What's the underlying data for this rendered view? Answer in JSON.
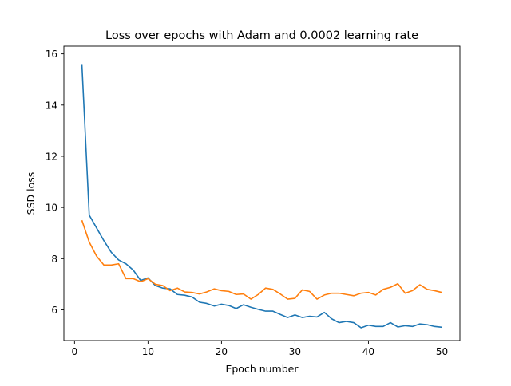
{
  "chart_data": {
    "type": "line",
    "title": "Loss over epochs with Adam and 0.0002 learning rate",
    "xlabel": "Epoch number",
    "ylabel": "SSD loss",
    "xlim": [
      -1.45,
      52.45
    ],
    "ylim": [
      4.8,
      16.3
    ],
    "xticks": [
      0,
      10,
      20,
      30,
      40,
      50
    ],
    "yticks": [
      6,
      8,
      10,
      12,
      14,
      16
    ],
    "grid": false,
    "legend": "none",
    "x": [
      1,
      2,
      3,
      4,
      5,
      6,
      7,
      8,
      9,
      10,
      11,
      12,
      13,
      14,
      15,
      16,
      17,
      18,
      19,
      20,
      21,
      22,
      23,
      24,
      25,
      26,
      27,
      28,
      29,
      30,
      31,
      32,
      33,
      34,
      35,
      36,
      37,
      38,
      39,
      40,
      41,
      42,
      43,
      44,
      45,
      46,
      47,
      48,
      49,
      50
    ],
    "series": [
      {
        "color": "#1f77b4",
        "values": [
          15.6,
          9.7,
          9.2,
          8.7,
          8.25,
          7.95,
          7.8,
          7.55,
          7.15,
          7.25,
          6.95,
          6.85,
          6.82,
          6.6,
          6.57,
          6.5,
          6.3,
          6.25,
          6.15,
          6.22,
          6.17,
          6.05,
          6.2,
          6.1,
          6.02,
          5.95,
          5.95,
          5.82,
          5.7,
          5.8,
          5.7,
          5.75,
          5.72,
          5.9,
          5.65,
          5.5,
          5.55,
          5.5,
          5.3,
          5.4,
          5.35,
          5.35,
          5.5,
          5.33,
          5.38,
          5.35,
          5.45,
          5.42,
          5.35,
          5.32
        ]
      },
      {
        "color": "#ff7f0e",
        "values": [
          9.5,
          8.65,
          8.1,
          7.75,
          7.75,
          7.8,
          7.22,
          7.22,
          7.1,
          7.22,
          7.0,
          6.95,
          6.75,
          6.85,
          6.7,
          6.68,
          6.62,
          6.7,
          6.82,
          6.75,
          6.72,
          6.6,
          6.62,
          6.42,
          6.6,
          6.85,
          6.8,
          6.62,
          6.42,
          6.45,
          6.78,
          6.72,
          6.42,
          6.58,
          6.65,
          6.65,
          6.6,
          6.55,
          6.65,
          6.68,
          6.58,
          6.8,
          6.88,
          7.02,
          6.65,
          6.75,
          6.98,
          6.8,
          6.75,
          6.68
        ]
      }
    ]
  }
}
